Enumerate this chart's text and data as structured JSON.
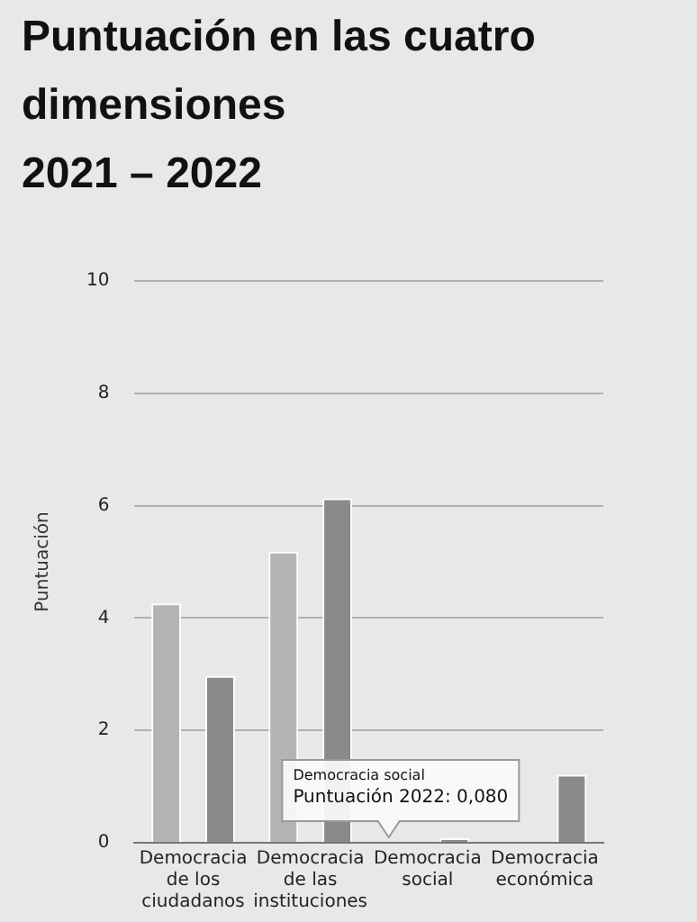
{
  "chart_data": {
    "type": "bar",
    "title": "Puntuación en las cuatro\ndimensiones\n2021 – 2022",
    "ylabel": "Puntuación",
    "categories": [
      "Democracia de los ciudadanos",
      "Democracia de las instituciones",
      "Democracia social",
      "Democracia económica"
    ],
    "series": [
      {
        "color": "#b4b4b4",
        "values": [
          4.26,
          5.18,
          null,
          null
        ]
      },
      {
        "color": "#8a8a8a",
        "values": [
          2.97,
          6.13,
          0.08,
          1.21
        ]
      }
    ],
    "ylim": [
      0,
      10
    ],
    "yticks": [
      0,
      2,
      4,
      6,
      8,
      10
    ],
    "grid": "y",
    "legend": false,
    "annotations": [
      "Democracia social",
      "Puntuación 2022: 0,080"
    ]
  }
}
